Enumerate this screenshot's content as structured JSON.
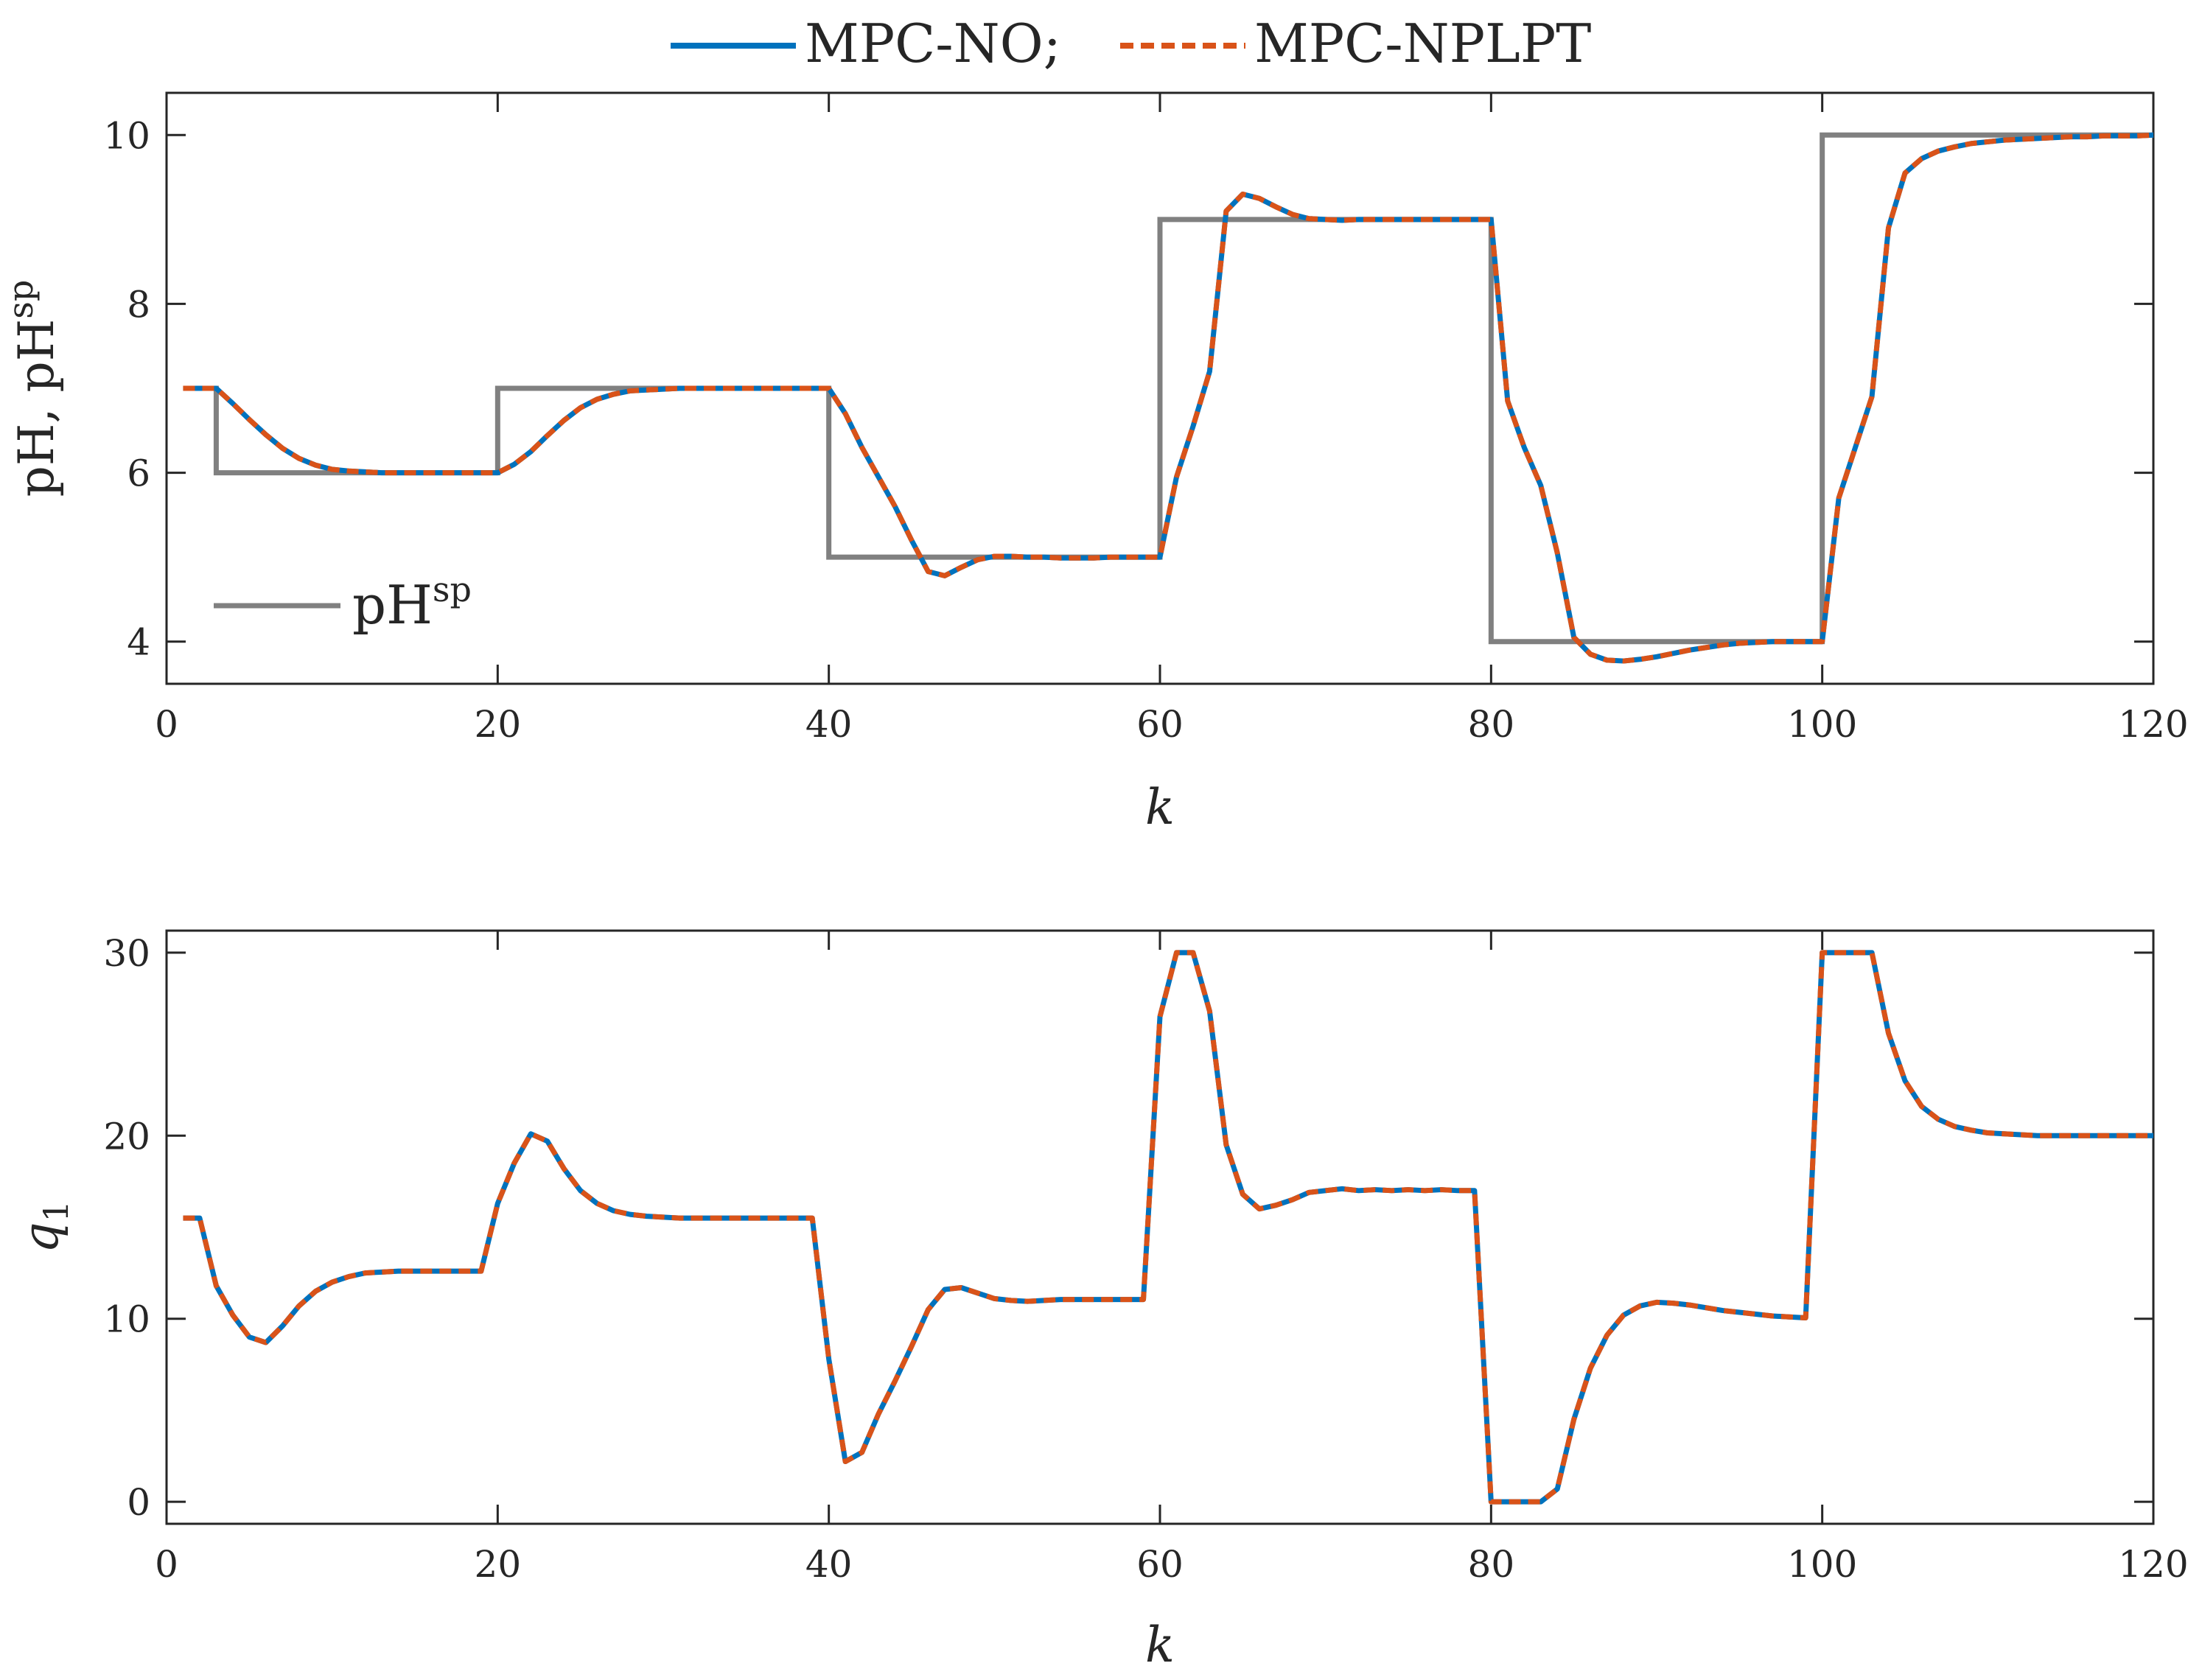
{
  "legend": {
    "entries": [
      {
        "label": "MPC-NO;",
        "color": "#0072BD",
        "style": "solid"
      },
      {
        "label": "MPC-NPLPT",
        "color": "#D95319",
        "style": "dashed"
      }
    ]
  },
  "chart_data": [
    {
      "type": "line",
      "xlabel": "k",
      "ylabel": {
        "base": "pH,  pH",
        "sup": "sp"
      },
      "xlim": [
        0,
        120
      ],
      "ylim": [
        3.5,
        10.5
      ],
      "xticks": [
        0,
        20,
        40,
        60,
        80,
        100,
        120
      ],
      "yticks": [
        4,
        6,
        8,
        10
      ],
      "inner_legend": {
        "base": "pH",
        "sup": "sp",
        "color": "#808080"
      },
      "setpoint": {
        "name": "pHsp",
        "color": "#808080",
        "x": [
          1,
          3,
          3,
          20,
          20,
          40,
          40,
          60,
          60,
          80,
          80,
          100,
          100,
          120
        ],
        "y": [
          7,
          7,
          6,
          6,
          7,
          7,
          5,
          5,
          9,
          9,
          4,
          4,
          10,
          10
        ]
      },
      "series": [
        {
          "name": "MPC-NO",
          "color": "#0072BD",
          "x": [
            1,
            2,
            3,
            4,
            5,
            6,
            7,
            8,
            9,
            10,
            11,
            12,
            13,
            14,
            15,
            16,
            17,
            18,
            19,
            20,
            21,
            22,
            23,
            24,
            25,
            26,
            27,
            28,
            29,
            30,
            31,
            32,
            33,
            34,
            35,
            36,
            37,
            38,
            39,
            40,
            41,
            42,
            43,
            44,
            45,
            46,
            47,
            48,
            49,
            50,
            51,
            52,
            53,
            54,
            55,
            56,
            57,
            58,
            59,
            60,
            61,
            62,
            63,
            64,
            65,
            66,
            67,
            68,
            69,
            70,
            71,
            72,
            73,
            74,
            75,
            76,
            77,
            78,
            79,
            80,
            81,
            82,
            83,
            84,
            85,
            86,
            87,
            88,
            89,
            90,
            91,
            92,
            93,
            94,
            95,
            96,
            97,
            98,
            99,
            100,
            101,
            102,
            103,
            104,
            105,
            106,
            107,
            108,
            109,
            110,
            111,
            112,
            113,
            114,
            115,
            116,
            117,
            118,
            119,
            120
          ],
          "y": [
            7.0,
            7.0,
            7.0,
            6.82,
            6.63,
            6.45,
            6.29,
            6.17,
            6.09,
            6.04,
            6.02,
            6.01,
            6.0,
            6.0,
            6.0,
            6.0,
            6.0,
            6.0,
            6.0,
            6.0,
            6.1,
            6.25,
            6.44,
            6.62,
            6.77,
            6.87,
            6.93,
            6.97,
            6.98,
            6.99,
            7.0,
            7.0,
            7.0,
            7.0,
            7.0,
            7.0,
            7.0,
            7.0,
            7.0,
            7.0,
            6.7,
            6.3,
            5.95,
            5.6,
            5.2,
            4.83,
            4.78,
            4.88,
            4.97,
            5.01,
            5.01,
            5.0,
            5.0,
            4.99,
            4.99,
            4.99,
            5.0,
            5.0,
            5.0,
            5.0,
            5.95,
            6.55,
            7.2,
            9.1,
            9.3,
            9.25,
            9.15,
            9.06,
            9.01,
            9.0,
            8.99,
            9.0,
            9.0,
            9.0,
            9.0,
            9.0,
            9.0,
            9.0,
            9.0,
            9.0,
            6.85,
            6.3,
            5.85,
            5.05,
            4.05,
            3.85,
            3.78,
            3.77,
            3.79,
            3.82,
            3.86,
            3.9,
            3.93,
            3.96,
            3.98,
            3.99,
            4.0,
            4.0,
            4.0,
            4.0,
            5.7,
            6.3,
            6.9,
            8.9,
            9.55,
            9.72,
            9.81,
            9.86,
            9.9,
            9.92,
            9.94,
            9.95,
            9.96,
            9.97,
            9.98,
            9.98,
            9.99,
            9.99,
            9.99,
            10.0
          ]
        },
        {
          "name": "MPC-NPLPT",
          "color": "#D95319",
          "same_as": "MPC-NO"
        }
      ]
    },
    {
      "type": "line",
      "xlabel": "k",
      "ylabel": {
        "base": "q",
        "sub": "1"
      },
      "xlim": [
        0,
        120
      ],
      "ylim": [
        -1.2,
        31.2
      ],
      "xticks": [
        0,
        20,
        40,
        60,
        80,
        100,
        120
      ],
      "yticks": [
        0,
        10,
        20,
        30
      ],
      "series": [
        {
          "name": "MPC-NO",
          "color": "#0072BD",
          "x": [
            1,
            2,
            3,
            4,
            5,
            6,
            7,
            8,
            9,
            10,
            11,
            12,
            13,
            14,
            15,
            16,
            17,
            18,
            19,
            20,
            21,
            22,
            23,
            24,
            25,
            26,
            27,
            28,
            29,
            30,
            31,
            32,
            33,
            34,
            35,
            36,
            37,
            38,
            39,
            40,
            41,
            42,
            43,
            44,
            45,
            46,
            47,
            48,
            49,
            50,
            51,
            52,
            53,
            54,
            55,
            56,
            57,
            58,
            59,
            60,
            61,
            62,
            63,
            64,
            65,
            66,
            67,
            68,
            69,
            70,
            71,
            72,
            73,
            74,
            75,
            76,
            77,
            78,
            79,
            80,
            81,
            82,
            83,
            84,
            85,
            86,
            87,
            88,
            89,
            90,
            91,
            92,
            93,
            94,
            95,
            96,
            97,
            98,
            99,
            100,
            101,
            102,
            103,
            104,
            105,
            106,
            107,
            108,
            109,
            110,
            111,
            112,
            113,
            114,
            115,
            116,
            117,
            118,
            119,
            120
          ],
          "y": [
            15.5,
            15.5,
            11.8,
            10.2,
            9.0,
            8.7,
            9.6,
            10.7,
            11.5,
            12.0,
            12.3,
            12.5,
            12.55,
            12.6,
            12.6,
            12.6,
            12.6,
            12.6,
            12.6,
            16.3,
            18.5,
            20.1,
            19.7,
            18.2,
            17.0,
            16.3,
            15.9,
            15.7,
            15.6,
            15.55,
            15.5,
            15.5,
            15.5,
            15.5,
            15.5,
            15.5,
            15.5,
            15.5,
            15.5,
            7.8,
            2.2,
            2.7,
            4.8,
            6.6,
            8.5,
            10.5,
            11.6,
            11.7,
            11.4,
            11.1,
            11.0,
            10.95,
            11.0,
            11.05,
            11.05,
            11.05,
            11.05,
            11.05,
            11.05,
            26.5,
            30.0,
            30.0,
            26.8,
            19.5,
            16.8,
            16.0,
            16.2,
            16.5,
            16.9,
            17.0,
            17.1,
            17.0,
            17.05,
            17.0,
            17.05,
            17.0,
            17.05,
            17.0,
            17.0,
            0.0,
            0.0,
            0.0,
            0.0,
            0.7,
            4.5,
            7.3,
            9.1,
            10.2,
            10.7,
            10.9,
            10.85,
            10.75,
            10.6,
            10.45,
            10.35,
            10.25,
            10.15,
            10.1,
            10.05,
            30.0,
            30.0,
            30.0,
            30.0,
            25.6,
            23.0,
            21.6,
            20.9,
            20.5,
            20.3,
            20.15,
            20.1,
            20.05,
            20.0,
            20.0,
            20.0,
            20.0,
            20.0,
            20.0,
            20.0,
            20.0
          ]
        },
        {
          "name": "MPC-NPLPT",
          "color": "#D95319",
          "same_as": "MPC-NO"
        }
      ]
    }
  ]
}
